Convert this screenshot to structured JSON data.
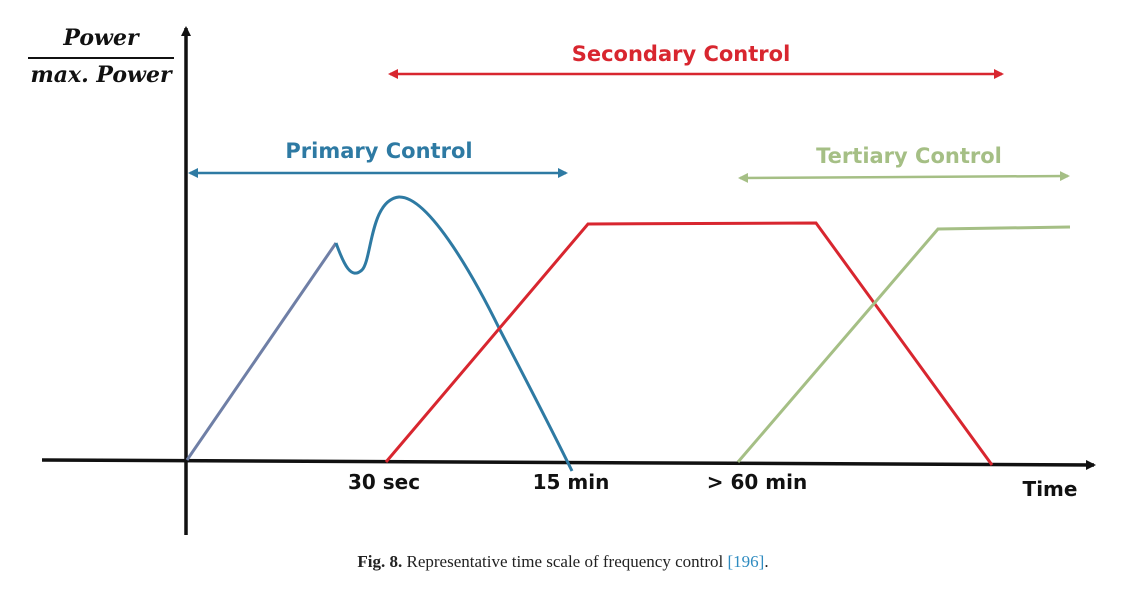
{
  "figure": {
    "y_axis_label": {
      "numerator": "Power",
      "denominator": "max. Power"
    },
    "x_axis_label": "Time",
    "ticks": [
      "30 sec",
      "15 min",
      "> 60 min"
    ],
    "spans": {
      "primary": {
        "label": "Primary Control",
        "color": "#2e7aa3"
      },
      "secondary": {
        "label": "Secondary Control",
        "color": "#d8262f"
      },
      "tertiary": {
        "label": "Tertiary Control",
        "color": "#a5bf85"
      }
    },
    "colors": {
      "axis": "#111111",
      "primary_ramp": "#6f7fa6"
    }
  },
  "caption": {
    "label": "Fig. 8.",
    "text": " Representative time scale of frequency control ",
    "reference": "[196]",
    "end": "."
  }
}
